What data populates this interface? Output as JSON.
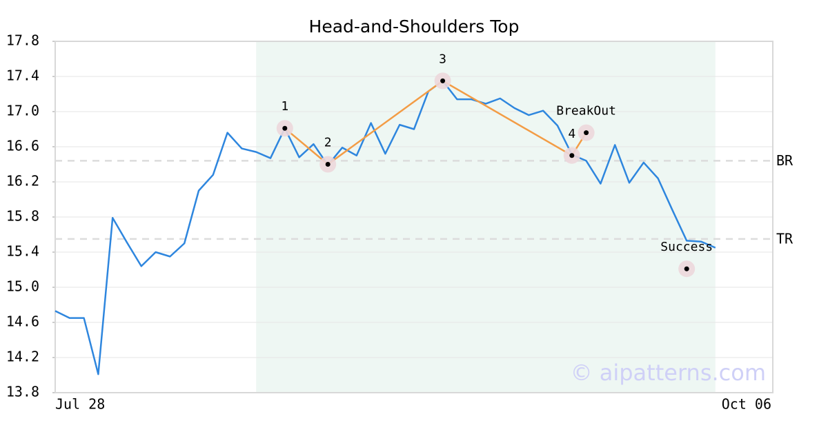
{
  "chart_data": {
    "type": "line",
    "title": "Head-and-Shoulders Top",
    "categories": [
      "Jul 28",
      null,
      null,
      null,
      null,
      null,
      null,
      null,
      null,
      null,
      null,
      null,
      null,
      null,
      null,
      null,
      null,
      null,
      null,
      null,
      null,
      null,
      null,
      null,
      null,
      null,
      null,
      null,
      null,
      null,
      null,
      null,
      null,
      null,
      null,
      null,
      null,
      null,
      null,
      null,
      null,
      null,
      null,
      null,
      null,
      null,
      null,
      null,
      null,
      null,
      "Oct 06"
    ],
    "series": [
      {
        "color": "#2e86de",
        "values": [
          14.73,
          14.65,
          14.65,
          14.01,
          15.79,
          15.51,
          15.24,
          15.4,
          15.35,
          15.5,
          16.1,
          16.28,
          16.76,
          16.58,
          16.54,
          16.47,
          16.81,
          16.48,
          16.63,
          16.39,
          16.59,
          16.5,
          16.87,
          16.52,
          16.85,
          16.8,
          17.23,
          17.35,
          17.14,
          17.14,
          17.09,
          17.15,
          17.04,
          16.96,
          17.01,
          16.84,
          16.51,
          16.44,
          16.18,
          16.62,
          16.19,
          16.42,
          16.24,
          15.88,
          15.53,
          15.52,
          15.45,
          null,
          null,
          null,
          null
        ]
      }
    ],
    "ylim": [
      13.8,
      17.8
    ],
    "yticks": [
      13.8,
      14.2,
      14.6,
      {
        "value": 15.0,
        "label": "15.0"
      },
      15.4,
      15.8,
      16.2,
      16.6,
      {
        "value": 17.0,
        "label": "17.0"
      },
      17.4,
      17.8
    ],
    "grid": true,
    "shaded_range": [
      14,
      46
    ],
    "pattern_color": "#f39c45",
    "pattern_points": [
      {
        "label": "1",
        "x": 16,
        "value": 16.81
      },
      {
        "label": "2",
        "x": 19,
        "value": 16.4
      },
      {
        "label": "3",
        "x": 27,
        "value": 17.35
      },
      {
        "label": "4",
        "x": 36,
        "value": 16.5
      },
      {
        "label": "BreakOut",
        "x": 37,
        "value": 16.76
      }
    ],
    "target_point": {
      "label": "Success",
      "x": 44,
      "value": 15.21
    },
    "levels": [
      {
        "label": "BR",
        "value": 16.44
      },
      {
        "label": "TR",
        "value": 15.55
      }
    ],
    "watermark": "© aipatterns.com"
  }
}
